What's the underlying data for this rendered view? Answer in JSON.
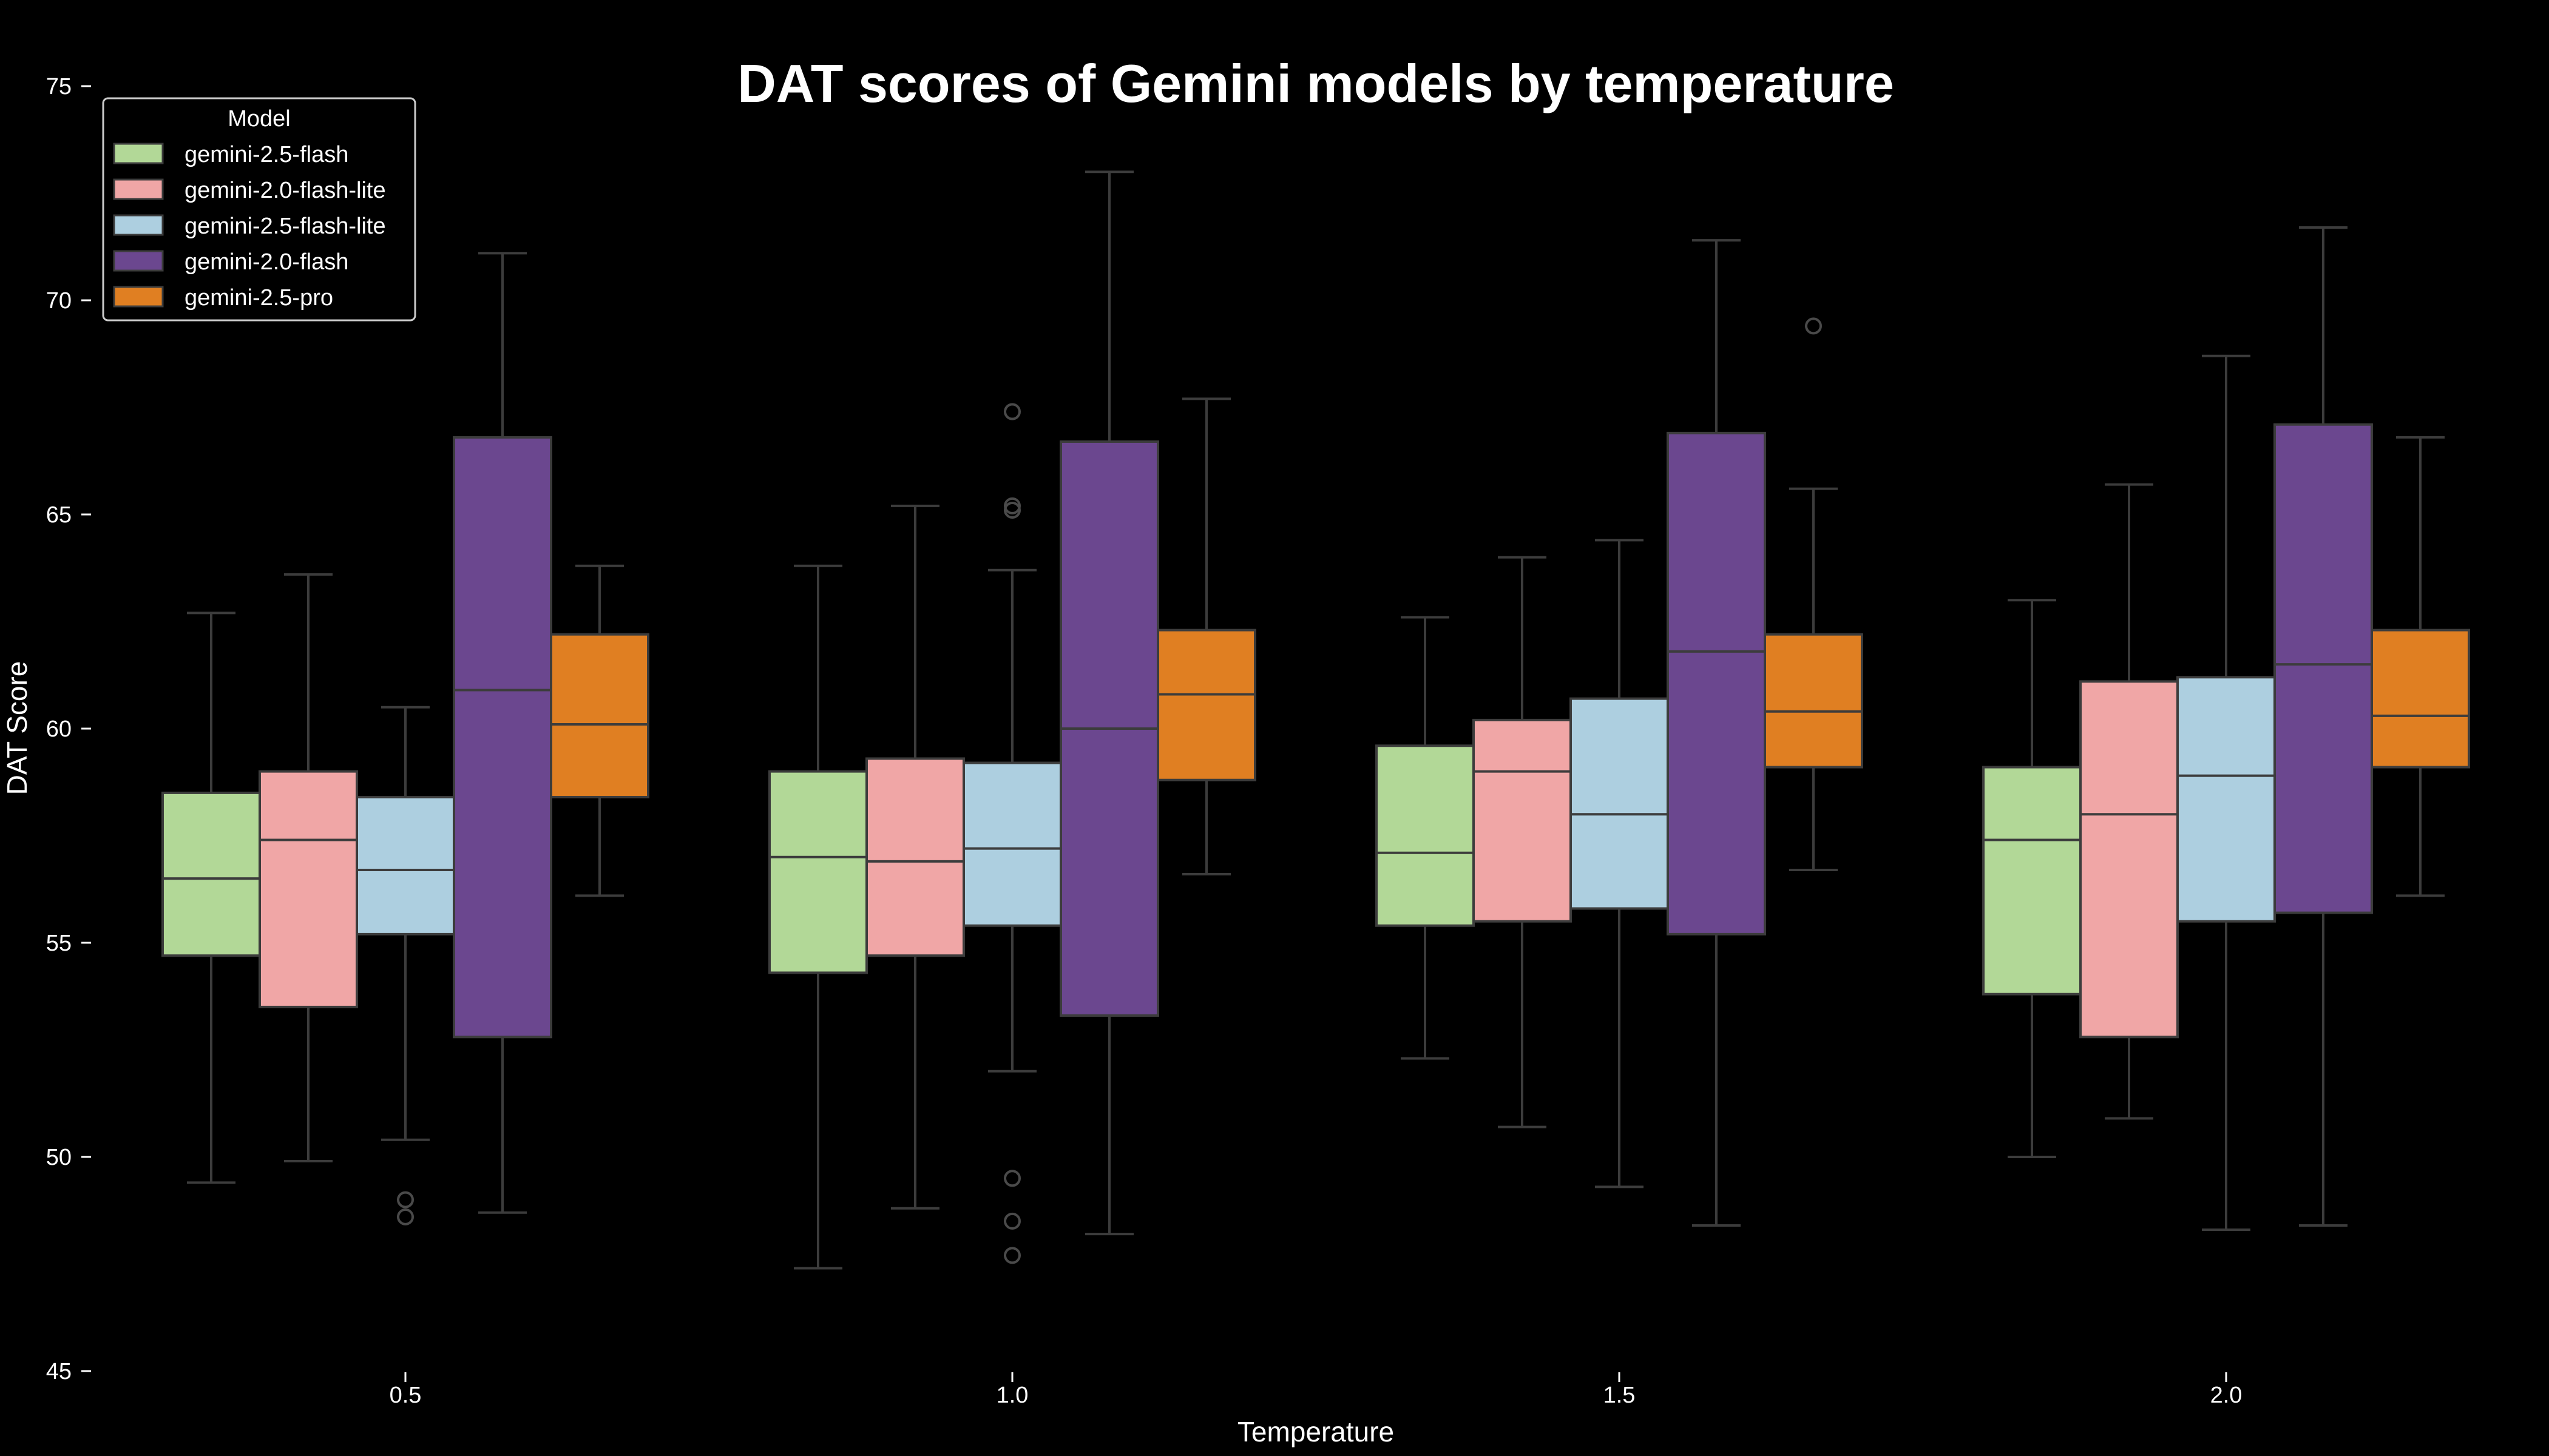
{
  "chart_data": {
    "type": "box",
    "title": "DAT scores of Gemini models by temperature",
    "xlabel": "Temperature",
    "ylabel": "DAT Score",
    "categories": [
      "0.5",
      "1.0",
      "1.5",
      "2.0"
    ],
    "ylim": [
      45,
      75
    ],
    "yticks": [
      45,
      50,
      55,
      60,
      65,
      70,
      75
    ],
    "grid": false,
    "legend": {
      "title": "Model",
      "placement": "top-left"
    },
    "series": [
      {
        "name": "gemini-2.5-flash",
        "color": "#b2d897",
        "boxes": [
          {
            "whisker_low": 49.4,
            "q1": 54.7,
            "median": 56.5,
            "q3": 58.5,
            "whisker_high": 62.7,
            "outliers": []
          },
          {
            "whisker_low": 47.4,
            "q1": 54.3,
            "median": 57.0,
            "q3": 59.0,
            "whisker_high": 63.8,
            "outliers": []
          },
          {
            "whisker_low": 52.3,
            "q1": 55.4,
            "median": 57.1,
            "q3": 59.6,
            "whisker_high": 62.6,
            "outliers": []
          },
          {
            "whisker_low": 50.0,
            "q1": 53.8,
            "median": 57.4,
            "q3": 59.1,
            "whisker_high": 63.0,
            "outliers": []
          }
        ]
      },
      {
        "name": "gemini-2.0-flash-lite",
        "color": "#f0a6a6",
        "boxes": [
          {
            "whisker_low": 49.9,
            "q1": 53.5,
            "median": 57.4,
            "q3": 59.0,
            "whisker_high": 63.6,
            "outliers": []
          },
          {
            "whisker_low": 48.8,
            "q1": 54.7,
            "median": 56.9,
            "q3": 59.3,
            "whisker_high": 65.2,
            "outliers": []
          },
          {
            "whisker_low": 50.7,
            "q1": 55.5,
            "median": 59.0,
            "q3": 60.2,
            "whisker_high": 64.0,
            "outliers": []
          },
          {
            "whisker_low": 50.9,
            "q1": 52.8,
            "median": 58.0,
            "q3": 61.1,
            "whisker_high": 65.7,
            "outliers": []
          }
        ]
      },
      {
        "name": "gemini-2.5-flash-lite",
        "color": "#adcfe0",
        "boxes": [
          {
            "whisker_low": 50.4,
            "q1": 55.2,
            "median": 56.7,
            "q3": 58.4,
            "whisker_high": 60.5,
            "outliers": [
              49.0,
              48.6
            ]
          },
          {
            "whisker_low": 52.0,
            "q1": 55.4,
            "median": 57.2,
            "q3": 59.2,
            "whisker_high": 63.7,
            "outliers": [
              67.4,
              65.2,
              65.1,
              49.5,
              48.5,
              47.7
            ]
          },
          {
            "whisker_low": 49.3,
            "q1": 55.8,
            "median": 58.0,
            "q3": 60.7,
            "whisker_high": 64.4,
            "outliers": []
          },
          {
            "whisker_low": 48.3,
            "q1": 55.5,
            "median": 58.9,
            "q3": 61.2,
            "whisker_high": 68.7,
            "outliers": []
          }
        ]
      },
      {
        "name": "gemini-2.0-flash",
        "color": "#6b478f",
        "boxes": [
          {
            "whisker_low": 48.7,
            "q1": 52.8,
            "median": 60.9,
            "q3": 66.8,
            "whisker_high": 71.1,
            "outliers": []
          },
          {
            "whisker_low": 48.2,
            "q1": 53.3,
            "median": 60.0,
            "q3": 66.7,
            "whisker_high": 73.0,
            "outliers": []
          },
          {
            "whisker_low": 48.4,
            "q1": 55.2,
            "median": 61.8,
            "q3": 66.9,
            "whisker_high": 71.4,
            "outliers": []
          },
          {
            "whisker_low": 48.4,
            "q1": 55.7,
            "median": 61.5,
            "q3": 67.1,
            "whisker_high": 71.7,
            "outliers": []
          }
        ]
      },
      {
        "name": "gemini-2.5-pro",
        "color": "#e07f22",
        "boxes": [
          {
            "whisker_low": 56.1,
            "q1": 58.4,
            "median": 60.1,
            "q3": 62.2,
            "whisker_high": 63.8,
            "outliers": []
          },
          {
            "whisker_low": 56.6,
            "q1": 58.8,
            "median": 60.8,
            "q3": 62.3,
            "whisker_high": 67.7,
            "outliers": []
          },
          {
            "whisker_low": 56.7,
            "q1": 59.1,
            "median": 60.4,
            "q3": 62.2,
            "whisker_high": 65.6,
            "outliers": [
              69.4
            ]
          },
          {
            "whisker_low": 56.1,
            "q1": 59.1,
            "median": 60.3,
            "q3": 62.3,
            "whisker_high": 66.8,
            "outliers": []
          }
        ]
      }
    ]
  }
}
